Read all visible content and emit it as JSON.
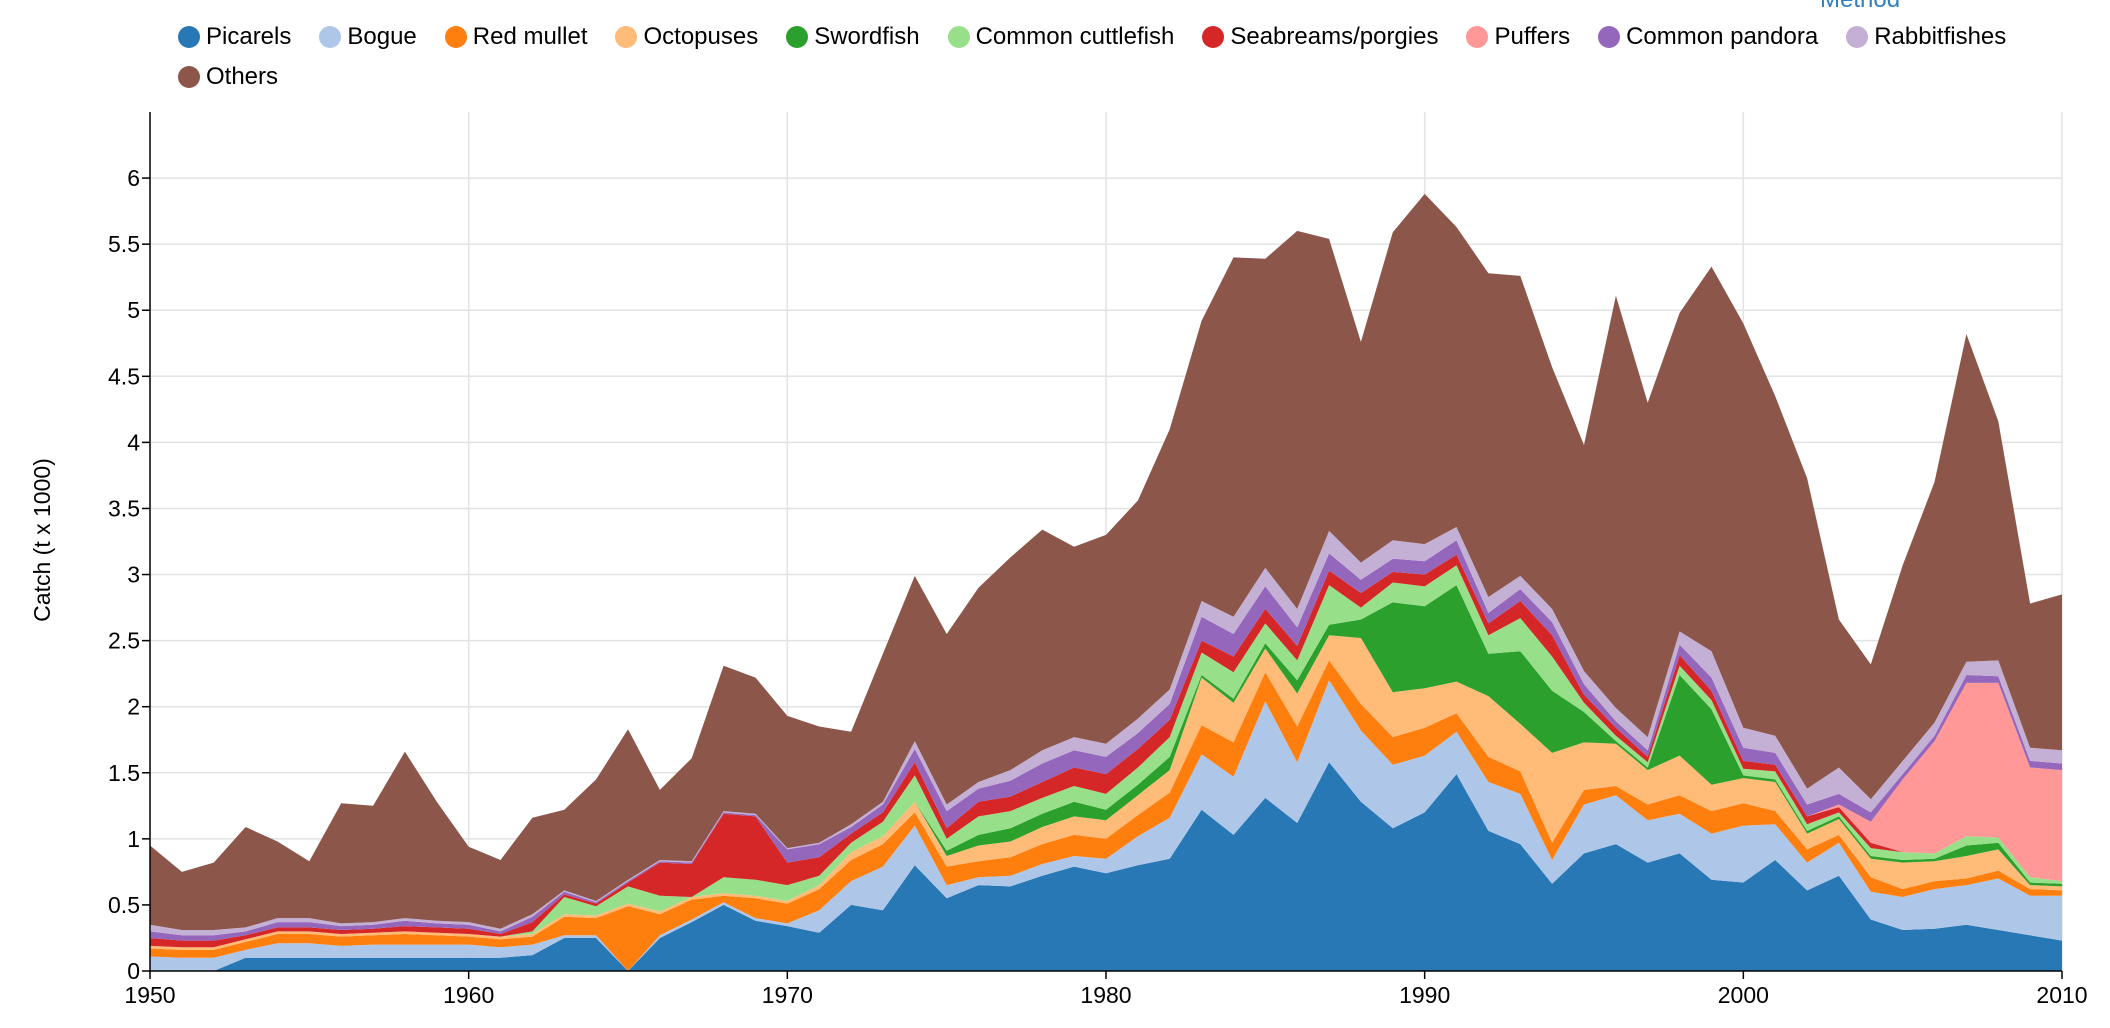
{
  "partial_link_text": "Method",
  "chart_data": {
    "type": "area",
    "stacked": true,
    "title": "",
    "xlabel": "",
    "ylabel": "Catch (t x 1000)",
    "xlim": [
      1950,
      2010
    ],
    "ylim": [
      0,
      6.5
    ],
    "x_ticks": [
      1950,
      1960,
      1970,
      1980,
      1990,
      2000,
      2010
    ],
    "y_ticks": [
      0,
      0.5,
      1,
      1.5,
      2,
      2.5,
      3,
      3.5,
      4,
      4.5,
      5,
      5.5,
      6
    ],
    "grid": true,
    "legend_position": "top",
    "x": [
      1950,
      1951,
      1952,
      1953,
      1954,
      1955,
      1956,
      1957,
      1958,
      1959,
      1960,
      1961,
      1962,
      1963,
      1964,
      1965,
      1966,
      1967,
      1968,
      1969,
      1970,
      1971,
      1972,
      1973,
      1974,
      1975,
      1976,
      1977,
      1978,
      1979,
      1980,
      1981,
      1982,
      1983,
      1984,
      1985,
      1986,
      1987,
      1988,
      1989,
      1990,
      1991,
      1992,
      1993,
      1994,
      1995,
      1996,
      1997,
      1998,
      1999,
      2000,
      2001,
      2002,
      2003,
      2004,
      2005,
      2006,
      2007,
      2008,
      2009,
      2010
    ],
    "series": [
      {
        "name": "Picarels",
        "color": "#2878b5",
        "values": [
          0,
          0,
          0,
          0.1,
          0.1,
          0.1,
          0.1,
          0.1,
          0.1,
          0.1,
          0.1,
          0.1,
          0.12,
          0.25,
          0.25,
          0,
          0.25,
          0.37,
          0.5,
          0.38,
          0.34,
          0.29,
          0.5,
          0.46,
          0.8,
          0.55,
          0.65,
          0.64,
          0.72,
          0.79,
          0.74,
          0.8,
          0.85,
          1.22,
          1.03,
          1.31,
          1.12,
          1.58,
          1.28,
          1.08,
          1.2,
          1.49,
          1.06,
          0.96,
          0.66,
          0.89,
          0.96,
          0.82,
          0.89,
          0.69,
          0.67,
          0.84,
          0.61,
          0.72,
          0.39,
          0.31,
          0.32,
          0.35,
          0.31,
          0.27,
          0.23
        ]
      },
      {
        "name": "Bogue",
        "color": "#aec7e8",
        "values": [
          0.11,
          0.1,
          0.1,
          0.06,
          0.11,
          0.11,
          0.09,
          0.1,
          0.1,
          0.1,
          0.1,
          0.08,
          0.08,
          0.02,
          0.02,
          0,
          0.02,
          0.02,
          0.02,
          0.02,
          0.02,
          0.17,
          0.18,
          0.33,
          0.3,
          0.1,
          0.06,
          0.08,
          0.09,
          0.08,
          0.11,
          0.22,
          0.31,
          0.42,
          0.44,
          0.73,
          0.46,
          0.62,
          0.54,
          0.48,
          0.43,
          0.32,
          0.37,
          0.38,
          0.18,
          0.37,
          0.37,
          0.32,
          0.3,
          0.35,
          0.43,
          0.27,
          0.21,
          0.25,
          0.21,
          0.25,
          0.3,
          0.3,
          0.39,
          0.3,
          0.34
        ]
      },
      {
        "name": "Red mullet",
        "color": "#ff7f0e",
        "values": [
          0.06,
          0.06,
          0.06,
          0.06,
          0.07,
          0.07,
          0.07,
          0.07,
          0.08,
          0.07,
          0.06,
          0.06,
          0.06,
          0.14,
          0.13,
          0.49,
          0.16,
          0.15,
          0.05,
          0.15,
          0.15,
          0.16,
          0.16,
          0.17,
          0.1,
          0.14,
          0.12,
          0.14,
          0.15,
          0.16,
          0.15,
          0.16,
          0.19,
          0.22,
          0.26,
          0.22,
          0.27,
          0.15,
          0.2,
          0.21,
          0.21,
          0.14,
          0.19,
          0.17,
          0.13,
          0.11,
          0.07,
          0.12,
          0.14,
          0.17,
          0.17,
          0.1,
          0.1,
          0.06,
          0.11,
          0.06,
          0.06,
          0.05,
          0.06,
          0.05,
          0.04
        ]
      },
      {
        "name": "Octopuses",
        "color": "#ffbb78",
        "values": [
          0.02,
          0.02,
          0.02,
          0.02,
          0.02,
          0.02,
          0.02,
          0.02,
          0.02,
          0.02,
          0.02,
          0.02,
          0.02,
          0.02,
          0.02,
          0.02,
          0.02,
          0.02,
          0.02,
          0.02,
          0.02,
          0.03,
          0.06,
          0.06,
          0.08,
          0.08,
          0.12,
          0.12,
          0.13,
          0.14,
          0.14,
          0.15,
          0.17,
          0.36,
          0.3,
          0.18,
          0.25,
          0.19,
          0.5,
          0.34,
          0.3,
          0.24,
          0.46,
          0.36,
          0.68,
          0.36,
          0.32,
          0.26,
          0.3,
          0.2,
          0.19,
          0.22,
          0.12,
          0.12,
          0.14,
          0.2,
          0.15,
          0.17,
          0.16,
          0.03,
          0.03
        ]
      },
      {
        "name": "Swordfish",
        "color": "#2ca02c",
        "values": [
          0,
          0,
          0,
          0,
          0,
          0,
          0,
          0,
          0,
          0,
          0,
          0,
          0,
          0,
          0,
          0,
          0,
          0,
          0,
          0,
          0,
          0,
          0,
          0,
          0,
          0.04,
          0.08,
          0.1,
          0.1,
          0.11,
          0.08,
          0.08,
          0.1,
          0.02,
          0.03,
          0.04,
          0.1,
          0.08,
          0.14,
          0.68,
          0.62,
          0.73,
          0.32,
          0.55,
          0.47,
          0.23,
          0.02,
          0.02,
          0.61,
          0.57,
          0.02,
          0.02,
          0.02,
          0.02,
          0.02,
          0.02,
          0.02,
          0.08,
          0.05,
          0.02,
          0.02
        ]
      },
      {
        "name": "Common cuttlefish",
        "color": "#98df8a",
        "values": [
          0,
          0,
          0,
          0,
          0,
          0,
          0,
          0,
          0,
          0,
          0,
          0,
          0.02,
          0.13,
          0.07,
          0.13,
          0.12,
          0.0,
          0.12,
          0.12,
          0.12,
          0.07,
          0.07,
          0.11,
          0.2,
          0.09,
          0.14,
          0.13,
          0.12,
          0.12,
          0.12,
          0.13,
          0.15,
          0.17,
          0.2,
          0.15,
          0.15,
          0.3,
          0.09,
          0.15,
          0.15,
          0.15,
          0.14,
          0.25,
          0.26,
          0.07,
          0.04,
          0.04,
          0.07,
          0.07,
          0.05,
          0.06,
          0.05,
          0.03,
          0.06,
          0.06,
          0.04,
          0.07,
          0.04,
          0.04,
          0.02
        ]
      },
      {
        "name": "Seabreams/porgies",
        "color": "#d62728",
        "values": [
          0.06,
          0.05,
          0.05,
          0.03,
          0.03,
          0.03,
          0.03,
          0.03,
          0.04,
          0.04,
          0.04,
          0.02,
          0.07,
          0.02,
          0.02,
          0.03,
          0.25,
          0.25,
          0.48,
          0.48,
          0.17,
          0.14,
          0.07,
          0.07,
          0.1,
          0.08,
          0.11,
          0.11,
          0.12,
          0.14,
          0.15,
          0.14,
          0.13,
          0.09,
          0.12,
          0.11,
          0.11,
          0.11,
          0.11,
          0.08,
          0.09,
          0.08,
          0.09,
          0.13,
          0.16,
          0.06,
          0.06,
          0.04,
          0.08,
          0.07,
          0.06,
          0.05,
          0.06,
          0.04,
          0.04,
          0,
          0,
          0,
          0,
          0,
          0
        ]
      },
      {
        "name": "Puffers",
        "color": "#ff9896",
        "values": [
          0,
          0,
          0,
          0,
          0,
          0,
          0,
          0,
          0,
          0,
          0,
          0,
          0,
          0,
          0,
          0,
          0,
          0,
          0,
          0,
          0,
          0,
          0,
          0,
          0,
          0,
          0,
          0,
          0,
          0,
          0,
          0,
          0,
          0,
          0,
          0,
          0,
          0,
          0,
          0,
          0,
          0,
          0,
          0,
          0,
          0,
          0,
          0,
          0,
          0,
          0,
          0,
          0,
          0.02,
          0.16,
          0.55,
          0.85,
          1.16,
          1.17,
          0.83,
          0.84
        ]
      },
      {
        "name": "Common pandora",
        "color": "#9467bd",
        "values": [
          0.05,
          0.04,
          0.04,
          0.03,
          0.04,
          0.04,
          0.03,
          0.03,
          0.04,
          0.03,
          0.03,
          0.02,
          0.04,
          0.02,
          0.01,
          0.01,
          0.01,
          0.01,
          0.01,
          0.01,
          0.1,
          0.1,
          0.05,
          0.06,
          0.1,
          0.13,
          0.1,
          0.12,
          0.14,
          0.13,
          0.13,
          0.12,
          0.12,
          0.18,
          0.17,
          0.17,
          0.14,
          0.13,
          0.1,
          0.1,
          0.1,
          0.11,
          0.08,
          0.09,
          0.1,
          0.08,
          0.05,
          0.05,
          0.08,
          0.1,
          0.1,
          0.09,
          0.09,
          0.08,
          0.07,
          0.04,
          0.04,
          0.06,
          0.05,
          0.05,
          0.05
        ]
      },
      {
        "name": "Rabbitfishes",
        "color": "#c5b0d5",
        "values": [
          0.05,
          0.04,
          0.04,
          0.03,
          0.03,
          0.03,
          0.02,
          0.02,
          0.02,
          0.02,
          0.02,
          0.02,
          0.02,
          0.01,
          0.01,
          0.01,
          0.01,
          0.01,
          0.01,
          0.01,
          0.01,
          0.01,
          0.02,
          0.02,
          0.06,
          0.05,
          0.05,
          0.08,
          0.1,
          0.1,
          0.1,
          0.11,
          0.11,
          0.12,
          0.13,
          0.14,
          0.14,
          0.17,
          0.13,
          0.14,
          0.13,
          0.1,
          0.12,
          0.1,
          0.1,
          0.1,
          0.1,
          0.1,
          0.1,
          0.2,
          0.15,
          0.13,
          0.12,
          0.2,
          0.1,
          0.1,
          0.1,
          0.1,
          0.12,
          0.1,
          0.1
        ]
      },
      {
        "name": "Others",
        "color": "#8c564b",
        "values": [
          0.6,
          0.44,
          0.51,
          0.76,
          0.58,
          0.43,
          0.91,
          0.88,
          1.26,
          0.9,
          0.57,
          0.52,
          0.73,
          0.61,
          0.92,
          1.14,
          0.53,
          0.78,
          1.1,
          1.03,
          1.0,
          0.88,
          0.7,
          1.12,
          1.25,
          1.29,
          1.47,
          1.61,
          1.67,
          1.44,
          1.58,
          1.65,
          1.97,
          2.12,
          2.72,
          2.34,
          2.86,
          2.21,
          1.67,
          2.33,
          2.65,
          2.27,
          2.45,
          2.27,
          1.83,
          1.71,
          3.12,
          2.53,
          2.41,
          2.91,
          3.06,
          2.57,
          2.35,
          1.12,
          1.02,
          1.48,
          1.82,
          2.48,
          1.81,
          1.09,
          1.18
        ]
      }
    ]
  }
}
